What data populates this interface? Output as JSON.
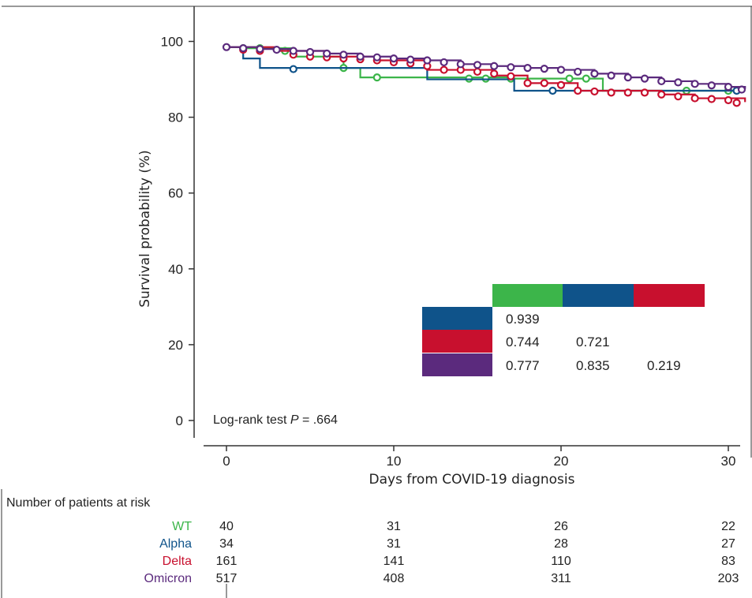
{
  "chart_data": {
    "type": "line",
    "subtype": "kaplan-meier",
    "xlabel": "Days from COVID-19 diagnosis",
    "ylabel": "Survival probability (%)",
    "xlim": [
      -2,
      31
    ],
    "ylim": [
      -3,
      106
    ],
    "x_ticks": [
      "0",
      "10",
      "20",
      "30"
    ],
    "y_ticks": [
      "0",
      "20",
      "40",
      "60",
      "80",
      "100"
    ],
    "annotation": {
      "prefix": "Log-rank test ",
      "p": "P",
      "suffix": " = .664"
    },
    "series": [
      {
        "name": "WT",
        "color": "#3cb54a",
        "steps": [
          [
            0,
            98.5
          ],
          [
            1,
            98.2
          ],
          [
            4,
            96
          ],
          [
            7,
            93
          ],
          [
            8,
            90.5
          ],
          [
            12,
            90.5
          ],
          [
            17,
            90.2
          ],
          [
            22.5,
            87
          ],
          [
            31,
            87
          ]
        ],
        "censors": [
          [
            1,
            98.2
          ],
          [
            2,
            98.2
          ],
          [
            3.5,
            97.5
          ],
          [
            7,
            93
          ],
          [
            9,
            90.5
          ],
          [
            14.5,
            90.2
          ],
          [
            15.5,
            90.2
          ],
          [
            17,
            90.2
          ],
          [
            20.5,
            90.2
          ],
          [
            21.5,
            90.2
          ],
          [
            27.5,
            87
          ],
          [
            30,
            87
          ]
        ]
      },
      {
        "name": "Alpha",
        "color": "#0f538a",
        "steps": [
          [
            0,
            98.5
          ],
          [
            1,
            95.5
          ],
          [
            2,
            93
          ],
          [
            12,
            90
          ],
          [
            17.2,
            87
          ],
          [
            31,
            87
          ]
        ],
        "censors": [
          [
            4,
            92.7
          ],
          [
            19.5,
            87
          ],
          [
            30.5,
            87
          ]
        ]
      },
      {
        "name": "Delta",
        "color": "#c8102e",
        "steps": [
          [
            0,
            98.5
          ],
          [
            3,
            97.5
          ],
          [
            6,
            96
          ],
          [
            9,
            95
          ],
          [
            12,
            92.5
          ],
          [
            16,
            91
          ],
          [
            18,
            89
          ],
          [
            21,
            87
          ],
          [
            26,
            86
          ],
          [
            28,
            85
          ],
          [
            31,
            84
          ]
        ],
        "censors": [
          [
            1,
            97.8
          ],
          [
            2,
            97.5
          ],
          [
            4,
            96.5
          ],
          [
            5,
            96
          ],
          [
            6,
            95.8
          ],
          [
            7,
            95.5
          ],
          [
            8,
            95.3
          ],
          [
            9,
            95
          ],
          [
            10,
            94.5
          ],
          [
            11,
            94.2
          ],
          [
            12,
            93.5
          ],
          [
            13,
            92.5
          ],
          [
            14,
            92.5
          ],
          [
            15,
            92
          ],
          [
            16,
            91.5
          ],
          [
            17,
            90.8
          ],
          [
            18,
            89
          ],
          [
            19,
            89
          ],
          [
            20,
            88.5
          ],
          [
            21,
            87
          ],
          [
            22,
            86.8
          ],
          [
            23,
            86.5
          ],
          [
            24,
            86.5
          ],
          [
            25,
            86.5
          ],
          [
            26,
            86
          ],
          [
            27,
            85.5
          ],
          [
            28,
            85
          ],
          [
            29,
            84.8
          ],
          [
            30,
            84.5
          ],
          [
            30.5,
            83.8
          ]
        ]
      },
      {
        "name": "Omicron",
        "color": "#5b2a7d",
        "steps": [
          [
            0,
            98.5
          ],
          [
            2,
            98
          ],
          [
            4,
            97.5
          ],
          [
            6,
            96.8
          ],
          [
            8,
            96
          ],
          [
            10,
            95.5
          ],
          [
            12,
            95
          ],
          [
            14,
            94
          ],
          [
            16,
            93.5
          ],
          [
            18,
            93
          ],
          [
            20,
            92.5
          ],
          [
            22,
            91.5
          ],
          [
            24,
            90.5
          ],
          [
            26,
            89.5
          ],
          [
            28,
            88.8
          ],
          [
            30,
            88
          ],
          [
            31,
            87.5
          ]
        ],
        "censors": [
          [
            0,
            98.5
          ],
          [
            1,
            98.2
          ],
          [
            2,
            98
          ],
          [
            3,
            97.8
          ],
          [
            4,
            97.5
          ],
          [
            5,
            97.2
          ],
          [
            6,
            96.8
          ],
          [
            7,
            96.5
          ],
          [
            8,
            96
          ],
          [
            9,
            95.8
          ],
          [
            10,
            95.5
          ],
          [
            11,
            95.2
          ],
          [
            12,
            95
          ],
          [
            13,
            94.5
          ],
          [
            14,
            94
          ],
          [
            15,
            93.8
          ],
          [
            16,
            93.5
          ],
          [
            17,
            93.2
          ],
          [
            18,
            93
          ],
          [
            19,
            92.8
          ],
          [
            20,
            92.5
          ],
          [
            21,
            92
          ],
          [
            22,
            91.5
          ],
          [
            23,
            91
          ],
          [
            24,
            90.5
          ],
          [
            25,
            90.2
          ],
          [
            26,
            89.5
          ],
          [
            27,
            89.2
          ],
          [
            28,
            88.8
          ],
          [
            29,
            88.4
          ],
          [
            30,
            88
          ],
          [
            30.8,
            87.3
          ]
        ]
      }
    ],
    "pairwise_table": {
      "title": "",
      "columns": [
        {
          "color": "#3cb54a"
        },
        {
          "color": "#0f538a"
        },
        {
          "color": "#c8102e"
        }
      ],
      "rows": [
        {
          "color": "#0f538a",
          "cells": [
            "0.939",
            "",
            ""
          ]
        },
        {
          "color": "#c8102e",
          "cells": [
            "0.744",
            "0.721",
            ""
          ]
        },
        {
          "color": "#5b2a7d",
          "cells": [
            "0.777",
            "0.835",
            "0.219"
          ]
        }
      ]
    }
  },
  "risk_table": {
    "title": "Number of patients at risk",
    "timepoints": [
      "0",
      "10",
      "20",
      "30"
    ],
    "groups": [
      {
        "name": "WT",
        "color": "#3cb54a",
        "counts": [
          "40",
          "31",
          "26",
          "22"
        ]
      },
      {
        "name": "Alpha",
        "color": "#0f538a",
        "counts": [
          "34",
          "31",
          "28",
          "27"
        ]
      },
      {
        "name": "Delta",
        "color": "#c8102e",
        "counts": [
          "161",
          "141",
          "110",
          "83"
        ]
      },
      {
        "name": "Omicron",
        "color": "#5b2a7d",
        "counts": [
          "517",
          "408",
          "311",
          "203"
        ]
      }
    ]
  }
}
